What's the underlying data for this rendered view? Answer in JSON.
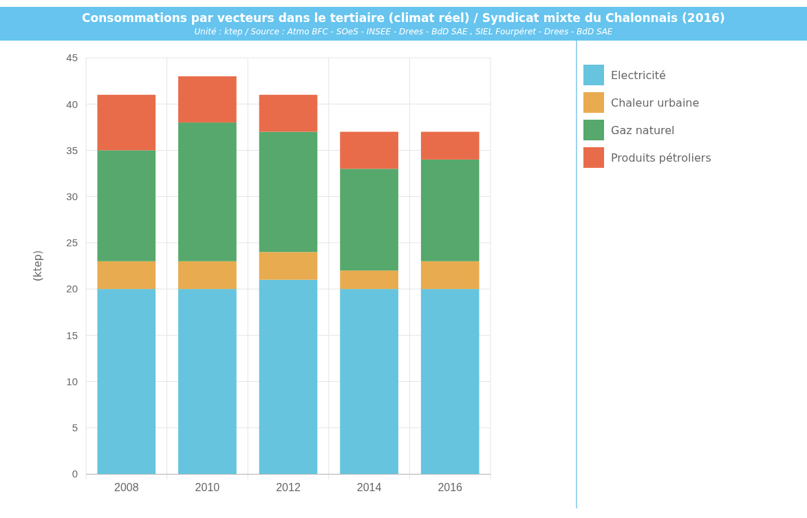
{
  "chart_data": {
    "type": "bar",
    "title": "Consommations par vecteurs dans le tertiaire (climat réel) / Syndicat mixte du Chalonnais (2016)",
    "subtitle": "Unité : ktep / Source : Atmo BFC - SOeS - INSEE - Drees - BdD SAE , SIEL Fourpéret - Drees - BdD SAE",
    "ylabel": "(ktep)",
    "categories": [
      "2008",
      "2010",
      "2012",
      "2014",
      "2016"
    ],
    "stacked": true,
    "series": [
      {
        "name": "Electricité",
        "color": "#66c4de",
        "values": [
          20,
          20,
          21,
          20,
          20
        ]
      },
      {
        "name": "Chaleur urbaine",
        "color": "#e8ab4f",
        "values": [
          3,
          3,
          3,
          2,
          3
        ]
      },
      {
        "name": "Gaz naturel",
        "color": "#56a86c",
        "values": [
          12,
          15,
          13,
          11,
          11
        ]
      },
      {
        "name": "Produits pétroliers",
        "color": "#e86c4a",
        "values": [
          6,
          5,
          4,
          4,
          3
        ]
      }
    ],
    "ylim": [
      0,
      45
    ],
    "yticks": [
      0,
      5,
      10,
      15,
      20,
      25,
      30,
      35,
      40,
      45
    ],
    "grid": true,
    "legend": "right"
  }
}
